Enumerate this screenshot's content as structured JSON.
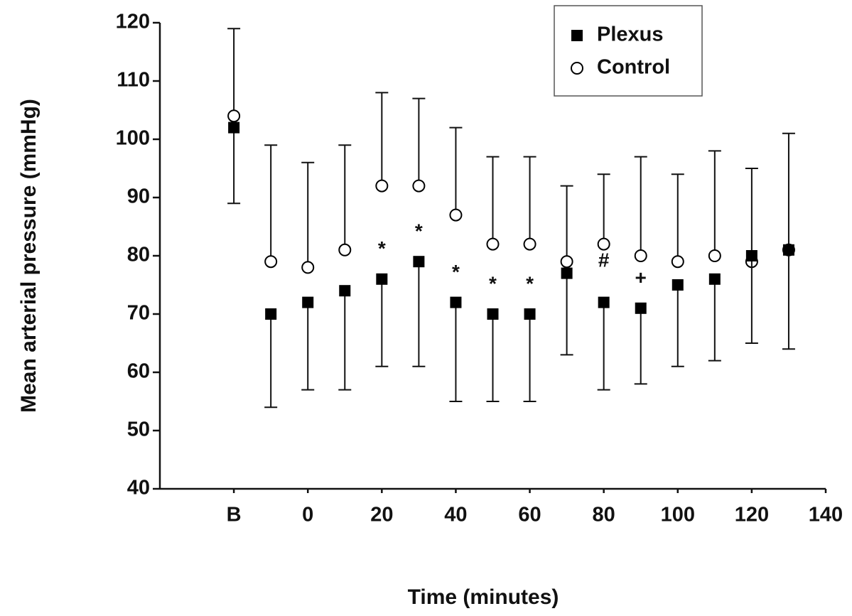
{
  "chart_data": {
    "type": "scatter",
    "xlabel": "Time (minutes)",
    "ylabel": "Mean arterial pressure (mmHg)",
    "x": [
      -20,
      -10,
      0,
      10,
      20,
      30,
      40,
      50,
      60,
      70,
      80,
      90,
      100,
      110,
      120,
      130
    ],
    "xlim": [
      -40,
      140
    ],
    "xticks": [
      {
        "value": -20,
        "label": "B"
      },
      0,
      20,
      40,
      60,
      80,
      100,
      120,
      140
    ],
    "ylim": [
      40,
      120
    ],
    "yticks": [
      40,
      50,
      60,
      70,
      80,
      90,
      100,
      110,
      120
    ],
    "legend": "upper right",
    "series": [
      {
        "name": "Plexus",
        "color": "#000000",
        "marker": "square",
        "error_direction": "down",
        "values": [
          102,
          70,
          72,
          74,
          76,
          79,
          72,
          70,
          70,
          77,
          72,
          71,
          75,
          76,
          80,
          81
        ],
        "errors": [
          13,
          16,
          15,
          17,
          15,
          18,
          17,
          15,
          15,
          14,
          15,
          13,
          14,
          14,
          15,
          17
        ]
      },
      {
        "name": "Control",
        "color": "#000000",
        "marker": "circle",
        "error_direction": "up",
        "values": [
          104,
          79,
          78,
          81,
          92,
          92,
          87,
          82,
          82,
          79,
          82,
          80,
          79,
          80,
          79,
          81
        ],
        "errors": [
          15,
          20,
          18,
          18,
          16,
          15,
          15,
          15,
          15,
          13,
          12,
          17,
          15,
          18,
          16,
          20
        ]
      }
    ],
    "annotations": [
      {
        "text": "*",
        "x": 20,
        "y": 81
      },
      {
        "text": "*",
        "x": 30,
        "y": 84
      },
      {
        "text": "*",
        "x": 40,
        "y": 77
      },
      {
        "text": "*",
        "x": 50,
        "y": 75
      },
      {
        "text": "*",
        "x": 60,
        "y": 75
      },
      {
        "text": "#",
        "x": 80,
        "y": 79
      },
      {
        "text": "+",
        "x": 90,
        "y": 76
      }
    ]
  }
}
